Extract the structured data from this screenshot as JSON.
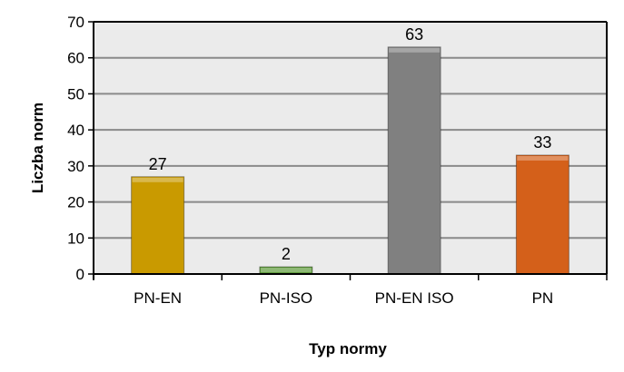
{
  "chart_data": {
    "type": "bar",
    "title": "",
    "xlabel": "Typ normy",
    "ylabel": "Liczba norm",
    "categories": [
      "PN-EN",
      "PN-ISO",
      "PN-EN ISO",
      "PN"
    ],
    "values": [
      27,
      2,
      63,
      33
    ],
    "data_labels": [
      "27",
      "2",
      "63",
      "33"
    ],
    "colors": [
      "#C99A00",
      "#5E9B3A",
      "#808080",
      "#D4601A"
    ],
    "ylim": [
      0,
      70
    ],
    "yticks": [
      0,
      10,
      20,
      30,
      40,
      50,
      60,
      70
    ],
    "grid": true,
    "legend": "none",
    "plot_background": "#EBEBEB"
  }
}
